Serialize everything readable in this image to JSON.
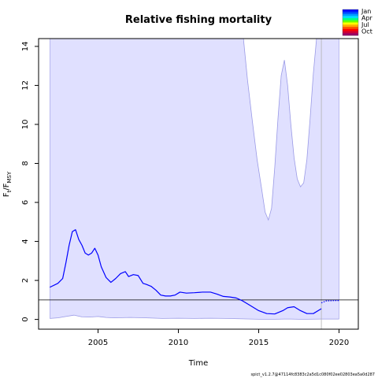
{
  "chart_data": {
    "type": "line",
    "title": "Relative fishing mortality",
    "xlabel": "Time",
    "ylabel": {
      "base": "F",
      "sub1": "t",
      "sep": "/F",
      "sub2": "MSY"
    },
    "xlim": [
      2001.3,
      2021.2
    ],
    "ylim": [
      -0.5,
      14.4
    ],
    "xticks": [
      2005,
      2010,
      2015,
      2020
    ],
    "yticks": [
      0,
      2,
      4,
      6,
      8,
      10,
      12,
      14
    ],
    "reference_line": 1,
    "last_observation": 2018.9,
    "prediction_end": 2020.0,
    "series": [
      {
        "name": "",
        "role": "estimate",
        "color": "#0000ff",
        "x": [
          2002.0,
          2002.5,
          2002.8,
          2003.0,
          2003.2,
          2003.4,
          2003.6,
          2003.8,
          2004.0,
          2004.2,
          2004.4,
          2004.6,
          2004.8,
          2005.0,
          2005.2,
          2005.5,
          2005.8,
          2006.1,
          2006.4,
          2006.7,
          2006.9,
          2007.2,
          2007.5,
          2007.8,
          2008.0,
          2008.3,
          2008.6,
          2008.9,
          2009.2,
          2009.5,
          2009.8,
          2010.1,
          2010.5,
          2011.0,
          2011.5,
          2012.0,
          2012.4,
          2012.8,
          2013.2,
          2013.6,
          2014.0,
          2014.5,
          2015.0,
          2015.5,
          2016.0,
          2016.5,
          2016.8,
          2017.2,
          2017.6,
          2018.0,
          2018.4,
          2018.9
        ],
        "y": [
          1.65,
          1.85,
          2.1,
          2.9,
          3.8,
          4.5,
          4.6,
          4.1,
          3.8,
          3.4,
          3.3,
          3.4,
          3.65,
          3.3,
          2.7,
          2.15,
          1.9,
          2.1,
          2.35,
          2.45,
          2.2,
          2.3,
          2.25,
          1.85,
          1.8,
          1.7,
          1.5,
          1.25,
          1.2,
          1.2,
          1.25,
          1.4,
          1.35,
          1.37,
          1.4,
          1.4,
          1.3,
          1.18,
          1.15,
          1.1,
          0.95,
          0.7,
          0.45,
          0.3,
          0.28,
          0.45,
          0.6,
          0.65,
          0.45,
          0.3,
          0.3,
          0.55
        ]
      },
      {
        "name": "",
        "role": "prediction",
        "color": "#0000ff",
        "x": [
          2018.9,
          2019.2,
          2019.5,
          2019.8,
          2020.0
        ],
        "y": [
          0.85,
          0.95,
          0.96,
          0.97,
          0.97
        ]
      },
      {
        "name": "",
        "role": "ci_upper",
        "color": "#9a9ae6",
        "x": [
          2014.05,
          2014.3,
          2014.6,
          2014.9,
          2015.2,
          2015.4,
          2015.6,
          2015.8,
          2016.0,
          2016.2,
          2016.4,
          2016.6,
          2016.8,
          2017.0,
          2017.2,
          2017.4,
          2017.6,
          2017.8,
          2018.0,
          2018.2,
          2018.4,
          2018.6,
          2018.7
        ],
        "y": [
          14.4,
          12.3,
          10.2,
          8.2,
          6.6,
          5.5,
          5.1,
          5.7,
          7.8,
          10.3,
          12.5,
          13.3,
          12.0,
          10.0,
          8.3,
          7.2,
          6.8,
          7.0,
          8.2,
          10.3,
          12.6,
          14.4,
          14.4
        ]
      },
      {
        "name": "",
        "role": "ci_lower",
        "color": "#9a9ae6",
        "x": [
          2002.0,
          2002.5,
          2003.0,
          2003.5,
          2004.0,
          2004.5,
          2005.0,
          2005.5,
          2006.0,
          2007.0,
          2008.0,
          2009.0,
          2010.0,
          2011.0,
          2012.0,
          2013.0,
          2014.0,
          2015.0,
          2016.0,
          2016.6,
          2017.0,
          2017.5,
          2018.0,
          2018.9,
          2020.0
        ],
        "y": [
          0.05,
          0.08,
          0.15,
          0.22,
          0.13,
          0.12,
          0.15,
          0.1,
          0.08,
          0.1,
          0.08,
          0.05,
          0.06,
          0.05,
          0.06,
          0.05,
          0.03,
          0.01,
          0.01,
          0.02,
          0.02,
          0.01,
          0.01,
          0.02,
          0.02
        ]
      }
    ],
    "legend": {
      "position": "top-right",
      "labels": [
        "Jan",
        "Apr",
        "Jul",
        "Oct"
      ],
      "colors": [
        "#0000ff",
        "#0044ff",
        "#0099ff",
        "#00ddff",
        "#00ff88",
        "#66ff00",
        "#ffff00",
        "#ffaa00",
        "#ff5500",
        "#ff0000",
        "#cc0033",
        "#990066"
      ]
    },
    "grid": false,
    "band_color": "#e0e0ff"
  },
  "footer": "spict_v1.2.7@47114fc8383c2a5d1c080f02ee02803ea5a0d287"
}
